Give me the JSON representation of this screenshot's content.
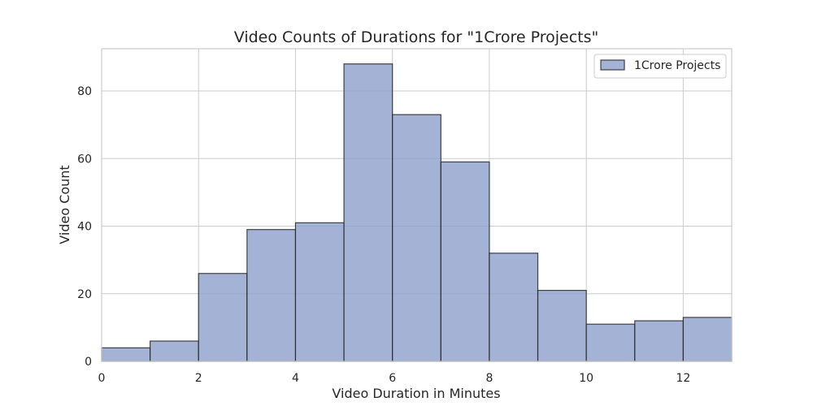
{
  "chart_data": {
    "type": "bar",
    "title": "Video Counts of Durations for \"1Crore Projects\"",
    "xlabel": "Video Duration in Minutes",
    "ylabel": "Video Count",
    "xlim": [
      0,
      13
    ],
    "ylim": [
      0,
      92.5
    ],
    "x_ticks": [
      0,
      2,
      4,
      6,
      8,
      10,
      12
    ],
    "y_ticks": [
      0,
      20,
      40,
      60,
      80
    ],
    "grid": true,
    "legend": {
      "placement": "top-right",
      "entries": [
        "1Crore Projects"
      ]
    },
    "series": [
      {
        "name": "1Crore Projects",
        "color": "#8da0cb",
        "bin_edges": [
          0,
          1,
          2,
          3,
          4,
          5,
          6,
          7,
          8,
          9,
          10,
          11,
          12,
          13
        ],
        "values": [
          4,
          6,
          26,
          39,
          41,
          88,
          73,
          59,
          32,
          21,
          11,
          12,
          13
        ]
      }
    ]
  }
}
